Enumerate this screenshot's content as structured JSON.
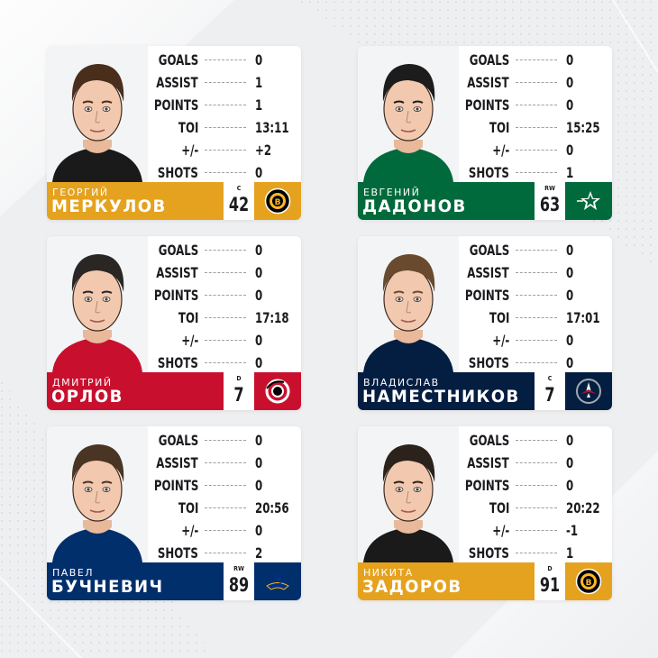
{
  "colors": {
    "background": "#eeeff1",
    "bruins_gold": "#e5a21e",
    "stars_green": "#016a3c",
    "hurricanes_red": "#c8102e",
    "jets_navy": "#041e42",
    "blues_navy": "#002f6c"
  },
  "stat_labels": [
    "GOALS",
    "ASSIST",
    "POINTS",
    "TOI",
    "+/-",
    "SHOTS"
  ],
  "players": [
    {
      "first_name": "ГЕОРГИЙ",
      "last_name": "МЕРКУЛОВ",
      "position": "C",
      "number": "42",
      "team_logo": "bruins-logo",
      "bar_color": "#e5a21e",
      "stats": [
        "0",
        "1",
        "1",
        "13:11",
        "+2",
        "0"
      ]
    },
    {
      "first_name": "ЕВГЕНИЙ",
      "last_name": "ДАДОНОВ",
      "position": "RW",
      "number": "63",
      "team_logo": "stars-logo",
      "bar_color": "#016a3c",
      "stats": [
        "0",
        "0",
        "0",
        "15:25",
        "0",
        "1"
      ]
    },
    {
      "first_name": "ДМИТРИЙ",
      "last_name": "ОРЛОВ",
      "position": "D",
      "number": "7",
      "team_logo": "hurricanes-logo",
      "bar_color": "#c8102e",
      "stats": [
        "0",
        "0",
        "0",
        "17:18",
        "0",
        "0"
      ]
    },
    {
      "first_name": "ВЛАДИСЛАВ",
      "last_name": "НАМЕСТНИКОВ",
      "position": "C",
      "number": "7",
      "team_logo": "jets-logo",
      "bar_color": "#041e42",
      "stats": [
        "0",
        "0",
        "0",
        "17:01",
        "0",
        "0"
      ]
    },
    {
      "first_name": "ПАВЕЛ",
      "last_name": "БУЧНЕВИЧ",
      "position": "RW",
      "number": "89",
      "team_logo": "blues-logo",
      "bar_color": "#002f6c",
      "stats": [
        "0",
        "0",
        "0",
        "20:56",
        "0",
        "2"
      ]
    },
    {
      "first_name": "НИКИТА",
      "last_name": "ЗАДОРОВ",
      "position": "D",
      "number": "91",
      "team_logo": "bruins-logo",
      "bar_color": "#e5a21e",
      "stats": [
        "0",
        "0",
        "0",
        "20:22",
        "-1",
        "1"
      ]
    }
  ]
}
